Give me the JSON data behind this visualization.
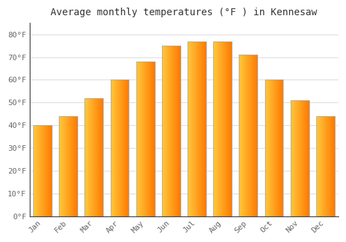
{
  "title": "Average monthly temperatures (°F ) in Kennesaw",
  "months": [
    "Jan",
    "Feb",
    "Mar",
    "Apr",
    "May",
    "Jun",
    "Jul",
    "Aug",
    "Sep",
    "Oct",
    "Nov",
    "Dec"
  ],
  "values": [
    40,
    44,
    52,
    60,
    68,
    75,
    77,
    77,
    71,
    60,
    51,
    44
  ],
  "bar_color_left": "#FFCC44",
  "bar_color_right": "#FFA020",
  "bar_edge_color": "#AAAAAA",
  "ylim": [
    0,
    85
  ],
  "yticks": [
    0,
    10,
    20,
    30,
    40,
    50,
    60,
    70,
    80
  ],
  "ytick_labels": [
    "0°F",
    "10°F",
    "20°F",
    "30°F",
    "40°F",
    "50°F",
    "60°F",
    "70°F",
    "80°F"
  ],
  "background_color": "#FFFFFF",
  "grid_color": "#DDDDDD",
  "title_fontsize": 10,
  "tick_fontsize": 8,
  "title_color": "#333333",
  "tick_color": "#666666",
  "bar_width": 0.72
}
